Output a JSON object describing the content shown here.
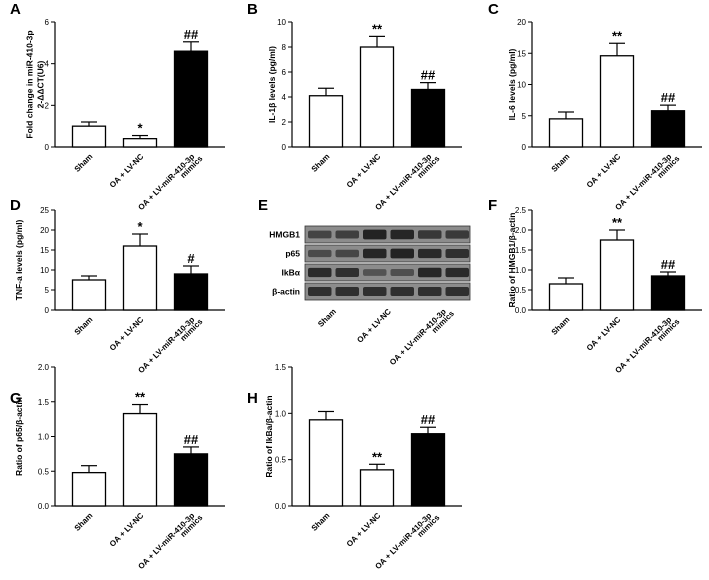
{
  "colors": {
    "bar_fill_open": "#ffffff",
    "bar_fill_dark": "#000000",
    "axis": "#000000",
    "blot_background": "#8c8c8c",
    "blot_band": "#1e1e1e"
  },
  "chart_data": [
    {
      "panel": "A",
      "type": "bar",
      "categories": [
        "Sham",
        "OA + LV-NC",
        [
          "OA + LV-miR-410-3p",
          "mimics"
        ]
      ],
      "values": [
        1.0,
        0.4,
        4.6
      ],
      "errors": [
        0.2,
        0.15,
        0.45
      ],
      "fills": [
        "open",
        "open",
        "dark"
      ],
      "sig": [
        "",
        "*",
        "##"
      ],
      "ylabel": [
        "Fold change in miR-410-3p",
        "2-ΔΔCT(U6)"
      ],
      "ylim": [
        0,
        6
      ],
      "yticks": [
        0,
        2,
        4,
        6
      ],
      "grid": false,
      "legend": "none"
    },
    {
      "panel": "B",
      "type": "bar",
      "categories": [
        "Sham",
        "OA + LV-NC",
        [
          "OA + LV-miR-410-3p",
          "mimics"
        ]
      ],
      "values": [
        4.1,
        8.0,
        4.6
      ],
      "errors": [
        0.6,
        0.85,
        0.55
      ],
      "fills": [
        "open",
        "open",
        "dark"
      ],
      "sig": [
        "",
        "**",
        "##"
      ],
      "ylabel": [
        "IL-1β levels (pg/ml)"
      ],
      "ylim": [
        0,
        10
      ],
      "yticks": [
        0,
        2,
        4,
        6,
        8,
        10
      ],
      "grid": false,
      "legend": "none"
    },
    {
      "panel": "C",
      "type": "bar",
      "categories": [
        "Sham",
        "OA + LV-NC",
        [
          "OA + LV-miR-410-3p",
          "mimics"
        ]
      ],
      "values": [
        4.5,
        14.6,
        5.8
      ],
      "errors": [
        1.1,
        2.0,
        0.9
      ],
      "fills": [
        "open",
        "open",
        "dark"
      ],
      "sig": [
        "",
        "**",
        "##"
      ],
      "ylabel": [
        "IL-6 levels (pg/ml)"
      ],
      "ylim": [
        0,
        20
      ],
      "yticks": [
        0,
        5,
        10,
        15,
        20
      ],
      "grid": false,
      "legend": "none"
    },
    {
      "panel": "D",
      "type": "bar",
      "categories": [
        "Sham",
        "OA + LV-NC",
        [
          "OA + LV-miR-410-3p",
          "mimics"
        ]
      ],
      "values": [
        7.5,
        16.0,
        9.0
      ],
      "errors": [
        1.0,
        3.0,
        2.0
      ],
      "fills": [
        "open",
        "open",
        "dark"
      ],
      "sig": [
        "",
        "*",
        "#"
      ],
      "ylabel": [
        "TNF-a levels (pg/ml)"
      ],
      "ylim": [
        0,
        25
      ],
      "yticks": [
        0,
        5,
        10,
        15,
        20,
        25
      ],
      "grid": false,
      "legend": "none"
    },
    {
      "panel": "F",
      "type": "bar",
      "categories": [
        "Sham",
        "OA + LV-NC",
        [
          "OA + LV-miR-410-3p",
          "mimics"
        ]
      ],
      "values": [
        0.65,
        1.75,
        0.85
      ],
      "errors": [
        0.15,
        0.25,
        0.1
      ],
      "fills": [
        "open",
        "open",
        "dark"
      ],
      "sig": [
        "",
        "**",
        "##"
      ],
      "ylabel": [
        "Ratio of HMGB1/β-actin"
      ],
      "ylim": [
        0,
        2.5
      ],
      "yticks": [
        0.0,
        0.5,
        1.0,
        1.5,
        2.0,
        2.5
      ],
      "grid": false,
      "legend": "none"
    },
    {
      "panel": "G",
      "type": "bar",
      "categories": [
        "Sham",
        "OA + LV-NC",
        [
          "OA + LV-miR-410-3p",
          "mimics"
        ]
      ],
      "values": [
        0.48,
        1.33,
        0.75
      ],
      "errors": [
        0.1,
        0.13,
        0.1
      ],
      "fills": [
        "open",
        "open",
        "dark"
      ],
      "sig": [
        "",
        "**",
        "##"
      ],
      "ylabel": [
        "Ratio of p65/β-actin"
      ],
      "ylim": [
        0,
        2.0
      ],
      "yticks": [
        0.0,
        0.5,
        1.0,
        1.5,
        2.0
      ],
      "grid": false,
      "legend": "none"
    },
    {
      "panel": "H",
      "type": "bar",
      "categories": [
        "Sham",
        "OA + LV-NC",
        [
          "OA + LV-miR-410-3p",
          "mimics"
        ]
      ],
      "values": [
        0.93,
        0.39,
        0.78
      ],
      "errors": [
        0.09,
        0.06,
        0.07
      ],
      "fills": [
        "open",
        "open",
        "dark"
      ],
      "sig": [
        "",
        "**",
        "##"
      ],
      "ylabel": [
        "Ratio of IkBa/β-actin"
      ],
      "ylim": [
        0,
        1.5
      ],
      "yticks": [
        0.0,
        0.5,
        1.0,
        1.5
      ],
      "grid": false,
      "legend": "none"
    }
  ],
  "blot": {
    "panel": "E",
    "row_labels": [
      "HMGB1",
      "p65",
      "IkBα",
      "β-actin"
    ],
    "lane_labels": [
      "Sham",
      "OA + LV-NC",
      [
        "OA + LV-miR-410-3p",
        "mimics"
      ]
    ],
    "band_intensity": [
      [
        [
          0.55,
          0.6
        ],
        [
          0.95,
          0.9
        ],
        [
          0.7,
          0.65
        ]
      ],
      [
        [
          0.45,
          0.5
        ],
        [
          0.9,
          0.95
        ],
        [
          0.85,
          0.8
        ]
      ],
      [
        [
          0.85,
          0.8
        ],
        [
          0.35,
          0.4
        ],
        [
          0.9,
          0.85
        ]
      ],
      [
        [
          0.8,
          0.8
        ],
        [
          0.8,
          0.8
        ],
        [
          0.8,
          0.8
        ]
      ]
    ]
  }
}
